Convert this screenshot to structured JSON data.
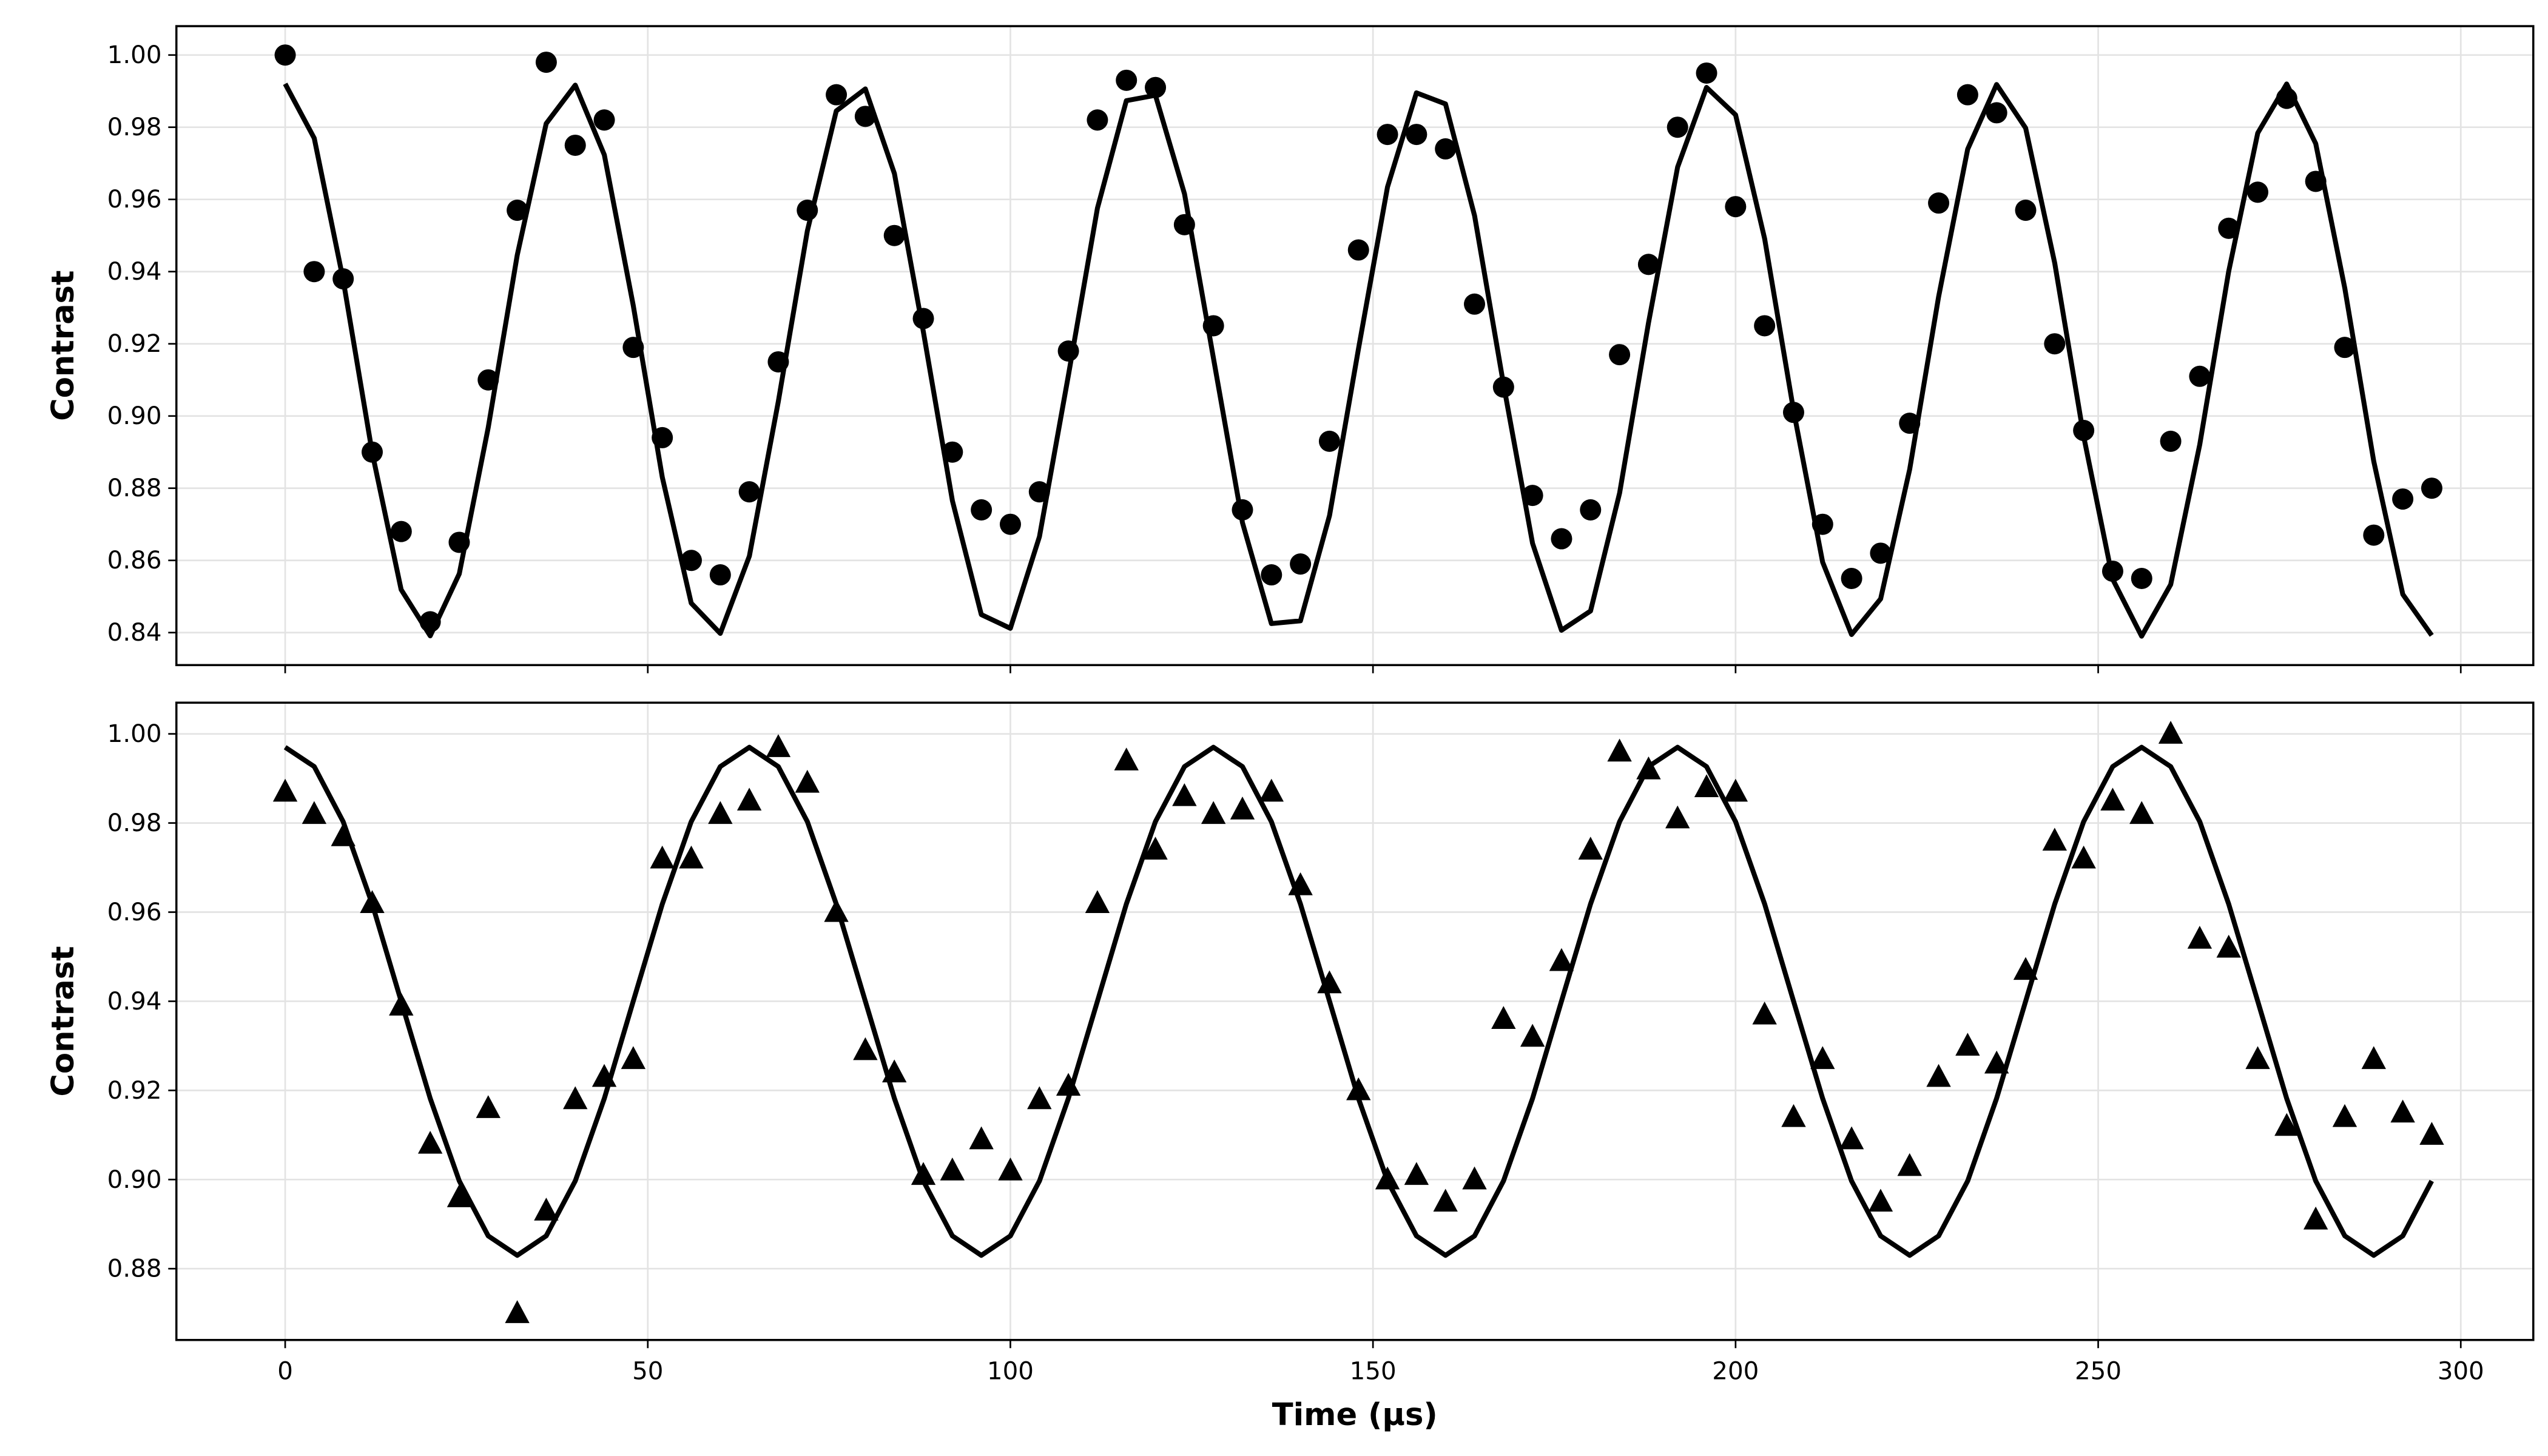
{
  "chart_data": [
    {
      "type": "scatter",
      "panel": "top",
      "xlabel": "",
      "ylabel": "Contrast",
      "xlim": [
        -15,
        310
      ],
      "ylim": [
        0.831,
        1.008
      ],
      "xticks": [
        0,
        50,
        100,
        150,
        200,
        250,
        300
      ],
      "yticks": [
        0.84,
        0.86,
        0.88,
        0.9,
        0.92,
        0.94,
        0.96,
        0.98,
        1.0
      ],
      "ytick_labels": [
        "0.84",
        "0.86",
        "0.88",
        "0.90",
        "0.92",
        "0.94",
        "0.96",
        "0.98",
        "1.00"
      ],
      "grid": true,
      "marker": "circle",
      "x": [
        0,
        4,
        8,
        12,
        16,
        20,
        24,
        28,
        32,
        36,
        40,
        44,
        48,
        52,
        56,
        60,
        64,
        68,
        72,
        76,
        80,
        84,
        88,
        92,
        96,
        100,
        104,
        108,
        112,
        116,
        120,
        124,
        128,
        132,
        136,
        140,
        144,
        148,
        152,
        156,
        160,
        164,
        168,
        172,
        176,
        180,
        184,
        188,
        192,
        196,
        200,
        204,
        208,
        212,
        216,
        220,
        224,
        228,
        232,
        236,
        240,
        244,
        248,
        252,
        256,
        260,
        264,
        268,
        272,
        276,
        280,
        284,
        288,
        292,
        296
      ],
      "y": [
        1.0,
        0.94,
        0.938,
        0.89,
        0.868,
        0.843,
        0.865,
        0.91,
        0.957,
        0.998,
        0.975,
        0.982,
        0.919,
        0.894,
        0.86,
        0.856,
        0.879,
        0.915,
        0.957,
        0.989,
        0.983,
        0.95,
        0.927,
        0.89,
        0.874,
        0.87,
        0.879,
        0.918,
        0.982,
        0.993,
        0.991,
        0.953,
        0.925,
        0.874,
        0.856,
        0.859,
        0.893,
        0.946,
        0.978,
        0.978,
        0.974,
        0.931,
        0.908,
        0.878,
        0.866,
        0.874,
        0.917,
        0.942,
        0.98,
        0.995,
        0.958,
        0.925,
        0.901,
        0.87,
        0.855,
        0.862,
        0.898,
        0.959,
        0.989,
        0.984,
        0.957,
        0.92,
        0.896,
        0.857,
        0.855,
        0.893,
        0.911,
        0.952,
        0.962,
        0.988,
        0.965,
        0.919,
        0.867,
        0.877,
        0.88
      ],
      "fit": {
        "model": "offset + amplitude*cos(2*pi*t/period)",
        "offset": 0.9155,
        "amplitude": 0.0765,
        "period": 39.4,
        "x_start": 0,
        "x_end": 296,
        "x_step": 4
      }
    },
    {
      "type": "scatter",
      "panel": "bottom",
      "xlabel": "Time (µs)",
      "ylabel": "Contrast",
      "xlim": [
        -15,
        310
      ],
      "ylim": [
        0.864,
        1.007
      ],
      "xticks": [
        0,
        50,
        100,
        150,
        200,
        250,
        300
      ],
      "xtick_labels": [
        "0",
        "50",
        "100",
        "150",
        "200",
        "250",
        "300"
      ],
      "yticks": [
        0.88,
        0.9,
        0.92,
        0.94,
        0.96,
        0.98,
        1.0
      ],
      "ytick_labels": [
        "0.88",
        "0.90",
        "0.92",
        "0.94",
        "0.96",
        "0.98",
        "1.00"
      ],
      "grid": true,
      "marker": "triangle",
      "x": [
        0,
        4,
        8,
        12,
        16,
        20,
        24,
        28,
        32,
        36,
        40,
        44,
        48,
        52,
        56,
        60,
        64,
        68,
        72,
        76,
        80,
        84,
        88,
        92,
        96,
        100,
        104,
        108,
        112,
        116,
        120,
        124,
        128,
        132,
        136,
        140,
        144,
        148,
        152,
        156,
        160,
        164,
        168,
        172,
        176,
        180,
        184,
        188,
        192,
        196,
        200,
        204,
        208,
        212,
        216,
        220,
        224,
        228,
        232,
        236,
        240,
        244,
        248,
        252,
        256,
        260,
        264,
        268,
        272,
        276,
        280,
        284,
        288,
        292,
        296
      ],
      "y": [
        0.987,
        0.982,
        0.977,
        0.962,
        0.939,
        0.908,
        0.896,
        0.916,
        0.87,
        0.893,
        0.918,
        0.923,
        0.927,
        0.972,
        0.972,
        0.982,
        0.985,
        0.997,
        0.989,
        0.96,
        0.929,
        0.924,
        0.901,
        0.902,
        0.909,
        0.902,
        0.918,
        0.921,
        0.962,
        0.994,
        0.974,
        0.986,
        0.982,
        0.983,
        0.987,
        0.966,
        0.944,
        0.92,
        0.9,
        0.901,
        0.895,
        0.9,
        0.936,
        0.932,
        0.949,
        0.974,
        0.996,
        0.992,
        0.981,
        0.988,
        0.987,
        0.937,
        0.914,
        0.927,
        0.909,
        0.895,
        0.903,
        0.923,
        0.93,
        0.926,
        0.947,
        0.976,
        0.972,
        0.985,
        0.982,
        1.0,
        0.954,
        0.952,
        0.927,
        0.912,
        0.891,
        0.914,
        0.927,
        0.915,
        0.91
      ],
      "fit": {
        "model": "offset + amplitude*cos(2*pi*t/period)",
        "offset": 0.94,
        "amplitude": 0.057,
        "period": 64,
        "x_start": 0,
        "x_end": 296,
        "x_step": 4
      }
    }
  ]
}
